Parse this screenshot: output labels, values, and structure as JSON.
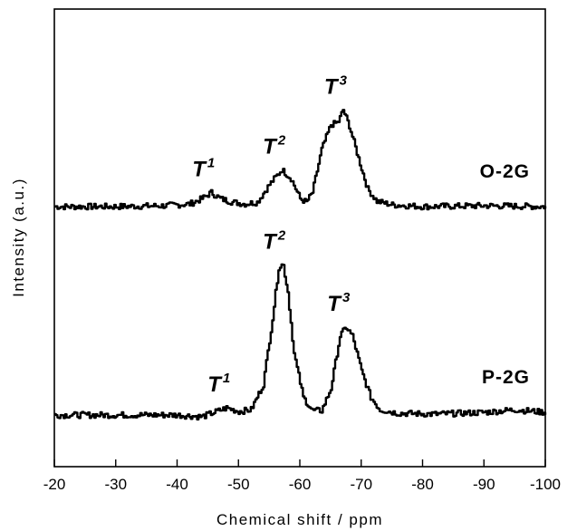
{
  "chart_data": {
    "type": "line",
    "xlabel": "Chemical shift / ppm",
    "ylabel": "Intensity (a.u.)",
    "xlim": [
      -20,
      -100
    ],
    "x_ticks": [
      "-20",
      "-30",
      "-40",
      "-50",
      "-60",
      "-70",
      "-80",
      "-90",
      "-100"
    ],
    "y_ticks": [],
    "grid": false,
    "series": [
      {
        "name": "O-2G",
        "baseline": 0,
        "points": [
          [
            -20,
            0.0
          ],
          [
            -30,
            0.0
          ],
          [
            -38,
            0.1
          ],
          [
            -42,
            0.3
          ],
          [
            -44,
            0.9
          ],
          [
            -45.5,
            1.6
          ],
          [
            -47,
            0.9
          ],
          [
            -49,
            0.5
          ],
          [
            -51,
            0.3
          ],
          [
            -53,
            0.5
          ],
          [
            -55,
            2.5
          ],
          [
            -57,
            4.2
          ],
          [
            -58.5,
            3.2
          ],
          [
            -60,
            0.9
          ],
          [
            -61,
            0.5
          ],
          [
            -62,
            1.6
          ],
          [
            -63.5,
            6.5
          ],
          [
            -65,
            9.3
          ],
          [
            -66.2,
            9.6
          ],
          [
            -67,
            11.0
          ],
          [
            -68,
            9.2
          ],
          [
            -69.5,
            5.5
          ],
          [
            -71,
            2.0
          ],
          [
            -72.5,
            0.6
          ],
          [
            -75,
            0.2
          ],
          [
            -80,
            0.0
          ],
          [
            -90,
            0.1
          ],
          [
            -100,
            0.0
          ]
        ],
        "peaks": [
          {
            "label": "T",
            "sup": "1",
            "x": -45.5
          },
          {
            "label": "T",
            "sup": "2",
            "x": -57
          },
          {
            "label": "T",
            "sup": "3",
            "x": -67
          }
        ]
      },
      {
        "name": "P-2G",
        "baseline": 0,
        "points": [
          [
            -20,
            0.0
          ],
          [
            -30,
            0.0
          ],
          [
            -40,
            0.0
          ],
          [
            -44,
            -0.2
          ],
          [
            -46,
            0.3
          ],
          [
            -48,
            0.8
          ],
          [
            -50,
            0.4
          ],
          [
            -52,
            0.6
          ],
          [
            -54,
            3.5
          ],
          [
            -55.5,
            11.0
          ],
          [
            -56.5,
            16.8
          ],
          [
            -57.2,
            17.2
          ],
          [
            -58,
            14.0
          ],
          [
            -59,
            7.0
          ],
          [
            -60.5,
            2.0
          ],
          [
            -62,
            0.5
          ],
          [
            -63.5,
            0.5
          ],
          [
            -65,
            3.0
          ],
          [
            -66.5,
            9.0
          ],
          [
            -67.5,
            10.0
          ],
          [
            -68.5,
            9.0
          ],
          [
            -70,
            5.0
          ],
          [
            -71.5,
            2.0
          ],
          [
            -73,
            0.6
          ],
          [
            -76,
            0.2
          ],
          [
            -82,
            0.1
          ],
          [
            -90,
            0.3
          ],
          [
            -95,
            0.6
          ],
          [
            -100,
            0.3
          ]
        ],
        "peaks": [
          {
            "label": "T",
            "sup": "1",
            "x": -48
          },
          {
            "label": "T",
            "sup": "2",
            "x": -57
          },
          {
            "label": "T",
            "sup": "3",
            "x": -67.5
          }
        ]
      }
    ]
  }
}
